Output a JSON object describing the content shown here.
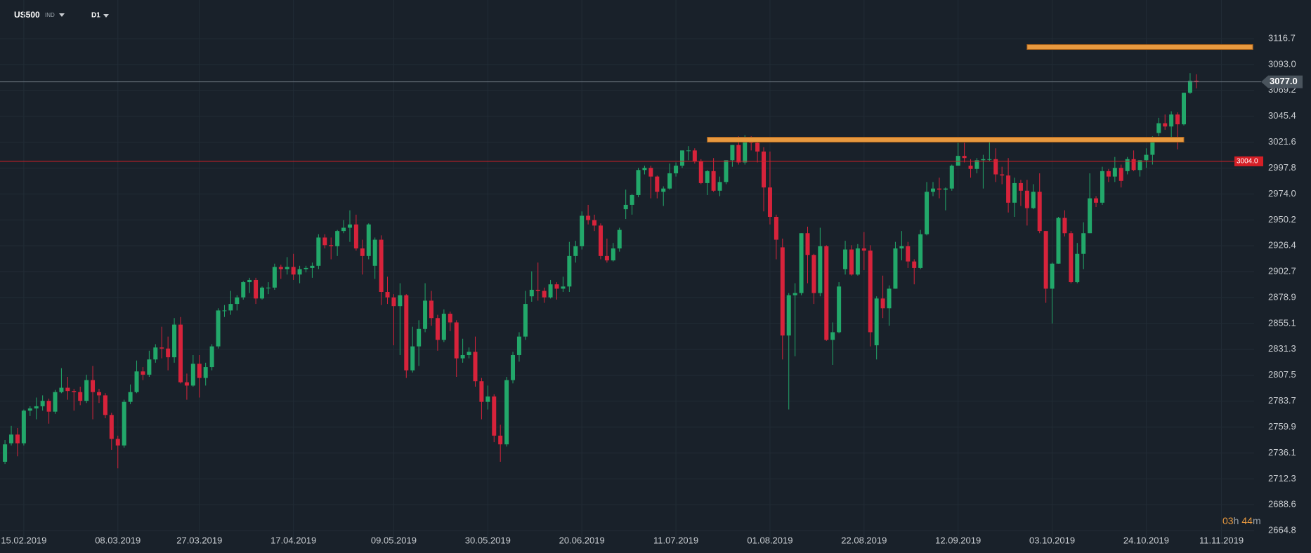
{
  "toolbar": {
    "symbol": "US500",
    "market": "IND",
    "interval": "D1"
  },
  "timer": {
    "hours": "03",
    "hours_unit": "h",
    "minutes": "44",
    "minutes_unit": "m"
  },
  "chart_data": {
    "type": "candlestick",
    "up_color": "#22a86a",
    "down_color": "#d7233b",
    "grid": true,
    "ylim": [
      2655.8,
      3152.2
    ],
    "yticks": [
      3116.7,
      {
        "value": 3093.0,
        "label": "3093.0"
      },
      3069.2,
      3045.4,
      3021.6,
      2997.8,
      {
        "value": 2974.0,
        "label": "2974.0"
      },
      2950.2,
      2926.4,
      2902.7,
      2878.9,
      2855.1,
      2831.3,
      2807.5,
      2783.7,
      2759.9,
      2736.1,
      2712.3,
      2688.6,
      2664.8
    ],
    "xticks": [
      "15.02.2019",
      "08.03.2019",
      "27.03.2019",
      "17.04.2019",
      "09.05.2019",
      "30.05.2019",
      "20.06.2019",
      "11.07.2019",
      "01.08.2019",
      "22.08.2019",
      "12.09.2019",
      "03.10.2019",
      "24.10.2019",
      "11.11.2019"
    ],
    "x": [
      "12.02.2019",
      "13.02.2019",
      "14.02.2019",
      "15.02.2019",
      "18.02.2019",
      "19.02.2019",
      "20.02.2019",
      "21.02.2019",
      "22.02.2019",
      "25.02.2019",
      "26.02.2019",
      "27.02.2019",
      "28.02.2019",
      "01.03.2019",
      "04.03.2019",
      "05.03.2019",
      "06.03.2019",
      "07.03.2019",
      "08.03.2019",
      "11.03.2019",
      "12.03.2019",
      "13.03.2019",
      "14.03.2019",
      "15.03.2019",
      "18.03.2019",
      "19.03.2019",
      "20.03.2019",
      "21.03.2019",
      "22.03.2019",
      "25.03.2019",
      "26.03.2019",
      "27.03.2019",
      "28.03.2019",
      "29.03.2019",
      "01.04.2019",
      "02.04.2019",
      "03.04.2019",
      "04.04.2019",
      "05.04.2019",
      "08.04.2019",
      "09.04.2019",
      "10.04.2019",
      "11.04.2019",
      "12.04.2019",
      "15.04.2019",
      "16.04.2019",
      "17.04.2019",
      "18.04.2019",
      "19.04.2019",
      "22.04.2019",
      "23.04.2019",
      "24.04.2019",
      "25.04.2019",
      "26.04.2019",
      "29.04.2019",
      "30.04.2019",
      "01.05.2019",
      "02.05.2019",
      "03.05.2019",
      "06.05.2019",
      "07.05.2019",
      "08.05.2019",
      "09.05.2019",
      "10.05.2019",
      "13.05.2019",
      "14.05.2019",
      "15.05.2019",
      "16.05.2019",
      "17.05.2019",
      "20.05.2019",
      "21.05.2019",
      "22.05.2019",
      "23.05.2019",
      "24.05.2019",
      "27.05.2019",
      "28.05.2019",
      "29.05.2019",
      "30.05.2019",
      "31.05.2019",
      "03.06.2019",
      "04.06.2019",
      "05.06.2019",
      "06.06.2019",
      "07.06.2019",
      "10.06.2019",
      "11.06.2019",
      "12.06.2019",
      "13.06.2019",
      "14.06.2019",
      "17.06.2019",
      "18.06.2019",
      "19.06.2019",
      "20.06.2019",
      "21.06.2019",
      "24.06.2019",
      "25.06.2019",
      "26.06.2019",
      "27.06.2019",
      "28.06.2019",
      "01.07.2019",
      "02.07.2019",
      "03.07.2019",
      "04.07.2019",
      "05.07.2019",
      "08.07.2019",
      "09.07.2019",
      "10.07.2019",
      "11.07.2019",
      "12.07.2019",
      "15.07.2019",
      "16.07.2019",
      "17.07.2019",
      "18.07.2019",
      "19.07.2019",
      "22.07.2019",
      "23.07.2019",
      "24.07.2019",
      "25.07.2019",
      "26.07.2019",
      "29.07.2019",
      "30.07.2019",
      "31.07.2019",
      "01.08.2019",
      "02.08.2019",
      "05.08.2019",
      "06.08.2019",
      "07.08.2019",
      "08.08.2019",
      "09.08.2019",
      "12.08.2019",
      "13.08.2019",
      "14.08.2019",
      "15.08.2019",
      "16.08.2019",
      "19.08.2019",
      "20.08.2019",
      "21.08.2019",
      "22.08.2019",
      "23.08.2019",
      "26.08.2019",
      "27.08.2019",
      "28.08.2019",
      "29.08.2019",
      "30.08.2019",
      "02.09.2019",
      "03.09.2019",
      "04.09.2019",
      "05.09.2019",
      "06.09.2019",
      "09.09.2019",
      "10.09.2019",
      "11.09.2019",
      "12.09.2019",
      "13.09.2019",
      "16.09.2019",
      "17.09.2019",
      "18.09.2019",
      "19.09.2019",
      "20.09.2019",
      "23.09.2019",
      "24.09.2019",
      "25.09.2019",
      "26.09.2019",
      "27.09.2019",
      "30.09.2019",
      "01.10.2019",
      "02.10.2019",
      "03.10.2019",
      "04.10.2019",
      "07.10.2019",
      "08.10.2019",
      "09.10.2019",
      "10.10.2019",
      "11.10.2019",
      "14.10.2019",
      "15.10.2019",
      "16.10.2019",
      "17.10.2019",
      "18.10.2019",
      "21.10.2019",
      "22.10.2019",
      "23.10.2019",
      "24.10.2019",
      "25.10.2019",
      "28.10.2019",
      "29.10.2019",
      "30.10.2019",
      "31.10.2019",
      "01.11.2019",
      "04.11.2019",
      "05.11.2019",
      "06.11.2019",
      "07.11.2019",
      "08.11.2019",
      "11.11.2019",
      "12.11.2019",
      "13.11.2019",
      "14.11.2019",
      "15.11.2019",
      "18.11.2019"
    ],
    "open": [
      2728,
      2745,
      2753,
      2745,
      2775,
      2777,
      2779,
      2784,
      2774,
      2792,
      2796,
      2793,
      2792,
      2784,
      2803,
      2792,
      2789,
      2771,
      2749,
      2743,
      2783,
      2792,
      2811,
      2808,
      2822,
      2833,
      2832,
      2824,
      2854,
      2801,
      2798,
      2818,
      2805,
      2815,
      2834,
      2867,
      2867,
      2873,
      2879,
      2893,
      2895,
      2878,
      2888,
      2888,
      2907,
      2905,
      2907,
      2900,
      2905,
      2906,
      2908,
      2934,
      2927,
      2926,
      2940,
      2943,
      2946,
      2924,
      2917,
      2908,
      2932,
      2884,
      2879,
      2871,
      2881,
      2812,
      2834,
      2850,
      2876,
      2860,
      2840,
      2864,
      2856,
      2823,
      2826,
      2829,
      2802,
      2783,
      2788,
      2752,
      2744,
      2803,
      2826,
      2843,
      2880,
      2886,
      2885,
      2879,
      2891,
      2887,
      2889,
      2917,
      2926,
      2954,
      2950,
      2945,
      2917,
      2913,
      2924,
      2960,
      2964,
      2973,
      2996,
      2998,
      2990,
      2976,
      2979,
      2993,
      3000,
      3014,
      3014,
      3004,
      2984,
      2995,
      2977,
      2985,
      3005,
      3019,
      3003,
      3025,
      3021,
      3013,
      2980,
      2953,
      2925,
      2844,
      2881,
      2883,
      2938,
      2918,
      2883,
      2926,
      2840,
      2847,
      2905,
      2923,
      2900,
      2924,
      2922,
      2835,
      2878,
      2869,
      2887,
      2924,
      2926,
      2912,
      2906,
      2937,
      2976,
      2979,
      2978,
      2979,
      3000,
      3009,
      3000,
      2997,
      3005,
      3006,
      3006,
      2992,
      2991,
      2966,
      2984,
      2977,
      2961,
      2976,
      2940,
      2887,
      2910,
      2952,
      2938,
      2893,
      2919,
      2938,
      2970,
      2966,
      2995,
      2990,
      2998,
      2995,
      3006,
      2996,
      3005,
      3010,
      3030,
      3039,
      3036,
      3047,
      3038,
      3067,
      3078,
      null,
      null,
      null,
      null,
      null,
      null,
      null,
      null,
      null
    ],
    "high": [
      2748,
      2761,
      2759,
      2776,
      2779,
      2787,
      2789,
      2786,
      2794,
      2814,
      2806,
      2795,
      2797,
      2808,
      2816,
      2795,
      2791,
      2773,
      2752,
      2785,
      2799,
      2821,
      2815,
      2830,
      2836,
      2852,
      2843,
      2860,
      2861,
      2809,
      2826,
      2826,
      2819,
      2836,
      2869,
      2872,
      2885,
      2881,
      2894,
      2897,
      2897,
      2889,
      2893,
      2910,
      2909,
      2916,
      2919,
      2908,
      2908,
      2911,
      2937,
      2937,
      2934,
      2941,
      2950,
      2959,
      2955,
      2932,
      2947,
      2934,
      2936,
      2898,
      2882,
      2892,
      2882,
      2852,
      2858,
      2892,
      2885,
      2863,
      2868,
      2866,
      2858,
      2841,
      2833,
      2843,
      2805,
      2798,
      2790,
      2762,
      2806,
      2829,
      2847,
      2885,
      2903,
      2911,
      2888,
      2895,
      2893,
      2898,
      2930,
      2931,
      2958,
      2964,
      2955,
      2947,
      2933,
      2929,
      2943,
      2978,
      2974,
      2998,
      3000,
      3000,
      2991,
      2981,
      3002,
      3003,
      3014,
      3018,
      3016,
      3006,
      2996,
      3007,
      2990,
      3005,
      3019,
      3027,
      3028,
      3027,
      3024,
      3017,
      3013,
      2955,
      2933,
      2883,
      2892,
      2938,
      2944,
      2919,
      2943,
      2927,
      2856,
      2893,
      2931,
      2927,
      2928,
      2939,
      2927,
      2880,
      2899,
      2890,
      2930,
      2940,
      2930,
      2914,
      2941,
      2985,
      2985,
      2989,
      2980,
      3001,
      3021,
      3021,
      3006,
      3007,
      3010,
      3022,
      3016,
      2999,
      3007,
      2989,
      2987,
      2987,
      2983,
      2993,
      2940,
      2911,
      2953,
      2959,
      2940,
      2929,
      2948,
      2993,
      2972,
      2999,
      2997,
      3008,
      3001,
      3008,
      3014,
      3005,
      3016,
      3027,
      3044,
      3047,
      3050,
      3049,
      3067,
      3085,
      3084,
      null,
      null,
      null,
      null,
      null,
      null,
      null,
      null,
      null
    ],
    "low": [
      2726,
      2743,
      2733,
      2743,
      2770,
      2767,
      2775,
      2763,
      2772,
      2791,
      2785,
      2775,
      2780,
      2782,
      2767,
      2782,
      2768,
      2739,
      2722,
      2741,
      2781,
      2791,
      2803,
      2806,
      2819,
      2823,
      2812,
      2819,
      2800,
      2785,
      2797,
      2787,
      2798,
      2812,
      2832,
      2861,
      2863,
      2867,
      2877,
      2883,
      2873,
      2877,
      2882,
      2886,
      2896,
      2900,
      2895,
      2892,
      2902,
      2897,
      2905,
      2924,
      2914,
      2917,
      2938,
      2930,
      2922,
      2900,
      2914,
      2896,
      2872,
      2873,
      2835,
      2826,
      2805,
      2810,
      2816,
      2847,
      2853,
      2830,
      2838,
      2848,
      2806,
      2819,
      2823,
      2797,
      2767,
      2776,
      2746,
      2728,
      2742,
      2800,
      2820,
      2840,
      2875,
      2876,
      2874,
      2878,
      2877,
      2884,
      2884,
      2911,
      2923,
      2946,
      2940,
      2914,
      2911,
      2912,
      2921,
      2951,
      2955,
      2971,
      2992,
      2970,
      2970,
      2963,
      2978,
      2990,
      2998,
      3005,
      3002,
      2983,
      2973,
      2976,
      2972,
      2983,
      2999,
      3001,
      3001,
      3014,
      3003,
      2958,
      2946,
      2914,
      2822,
      2776,
      2825,
      2881,
      2892,
      2873,
      2880,
      2839,
      2817,
      2846,
      2900,
      2899,
      2899,
      2904,
      2834,
      2822,
      2860,
      2853,
      2887,
      2913,
      2906,
      2891,
      2905,
      2936,
      2972,
      2970,
      2959,
      2977,
      3000,
      3003,
      2989,
      2993,
      2979,
      3004,
      2985,
      2983,
      2957,
      2953,
      2963,
      2945,
      2960,
      2938,
      2874,
      2855,
      2910,
      2935,
      2892,
      2892,
      2905,
      2938,
      2962,
      2964,
      2985,
      2985,
      2980,
      2992,
      2995,
      2990,
      2998,
      3001,
      3027,
      3033,
      3026,
      3015,
      3037,
      3066,
      3071,
      null,
      null,
      null,
      null,
      null,
      null,
      null,
      null,
      null
    ],
    "close": [
      2744,
      2753,
      2745,
      2775,
      2777,
      2779,
      2784,
      2774,
      2792,
      2796,
      2793,
      2792,
      2784,
      2803,
      2792,
      2789,
      2771,
      2749,
      2743,
      2783,
      2792,
      2811,
      2808,
      2822,
      2833,
      2832,
      2824,
      2854,
      2801,
      2798,
      2818,
      2805,
      2815,
      2834,
      2867,
      2867,
      2873,
      2879,
      2893,
      2895,
      2878,
      2888,
      2888,
      2907,
      2905,
      2907,
      2900,
      2905,
      2906,
      2908,
      2934,
      2927,
      2926,
      2940,
      2943,
      2946,
      2924,
      2917,
      2946,
      2932,
      2884,
      2879,
      2871,
      2881,
      2812,
      2834,
      2850,
      2876,
      2860,
      2840,
      2864,
      2856,
      2823,
      2826,
      2829,
      2802,
      2783,
      2788,
      2752,
      2744,
      2803,
      2826,
      2843,
      2873,
      2886,
      2885,
      2879,
      2891,
      2887,
      2889,
      2917,
      2926,
      2954,
      2950,
      2945,
      2917,
      2913,
      2924,
      2941,
      2964,
      2973,
      2996,
      2998,
      2990,
      2976,
      2979,
      2993,
      3000,
      3014,
      3014,
      3004,
      2984,
      2995,
      2977,
      2985,
      3005,
      3019,
      3003,
      3025,
      3021,
      3013,
      2980,
      2953,
      2932,
      2844,
      2881,
      2883,
      2938,
      2918,
      2883,
      2926,
      2840,
      2847,
      2889,
      2923,
      2900,
      2924,
      2922,
      2847,
      2878,
      2869,
      2887,
      2924,
      2926,
      2912,
      2906,
      2937,
      2976,
      2979,
      2978,
      2979,
      3000,
      3009,
      3007,
      2997,
      3005,
      3006,
      3006,
      2992,
      2991,
      2966,
      2984,
      2977,
      2961,
      2976,
      2940,
      2887,
      2910,
      2952,
      2938,
      2893,
      2919,
      2938,
      2970,
      2966,
      2995,
      2990,
      2998,
      2986,
      3006,
      2996,
      3005,
      3010,
      3023,
      3039,
      3036,
      3047,
      3038,
      3067,
      3078,
      3077,
      null,
      null,
      null,
      null,
      null,
      null,
      null,
      null,
      null
    ],
    "levels": [
      {
        "value": 3109.0,
        "from": "27.09.2019",
        "to": "18.11.2019"
      },
      {
        "value": 3023.9,
        "from": "18.07.2019",
        "to": "01.11.2019"
      }
    ],
    "level_color": "#e8993f",
    "price_lines": [
      {
        "value": 3077.0,
        "label": "3077.0",
        "color": "#6f7a84"
      },
      {
        "value": 3004.0,
        "label": "3004.0",
        "color": "#d61f26"
      }
    ]
  }
}
